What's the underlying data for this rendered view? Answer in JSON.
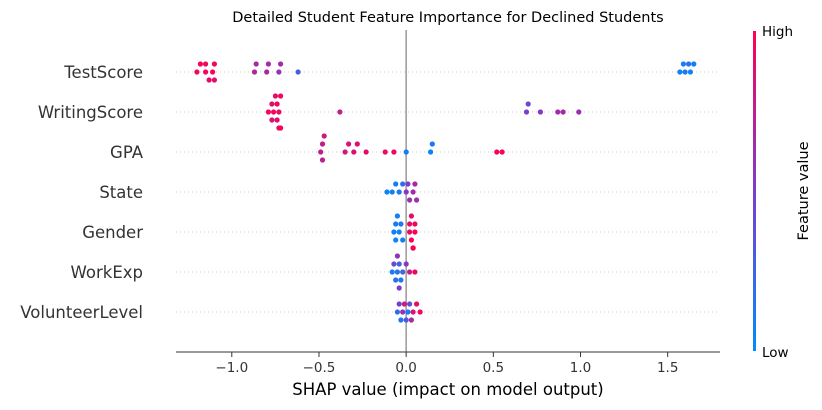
{
  "chart_data": {
    "type": "scatter",
    "title": "Detailed Student Feature Importance for Declined Students",
    "xlabel": "SHAP value (impact on model output)",
    "xlim": [
      -1.32,
      1.8
    ],
    "xticks": [
      "−1.0",
      "−0.5",
      "0.0",
      "0.5",
      "1.0",
      "1.5"
    ],
    "xtick_values": [
      -1.0,
      -0.5,
      0.0,
      0.5,
      1.0,
      1.5
    ],
    "zero_line": true,
    "colorbar": {
      "high_label": "High",
      "low_label": "Low",
      "label": "Feature value"
    },
    "colors": {
      "high": "#ff0052",
      "low": "#008bfb",
      "zero_line": "#999999"
    },
    "features": [
      {
        "name": "TestScore",
        "points": [
          {
            "x": -1.18,
            "v": 0.97
          },
          {
            "x": -1.15,
            "v": 0.95
          },
          {
            "x": -1.13,
            "v": 0.92
          },
          {
            "x": -1.11,
            "v": 0.98
          },
          {
            "x": -1.2,
            "v": 0.94
          },
          {
            "x": -1.1,
            "v": 0.96
          },
          {
            "x": -1.1,
            "v": 0.9
          },
          {
            "x": -1.15,
            "v": 0.93
          },
          {
            "x": -0.87,
            "v": 0.72
          },
          {
            "x": -0.86,
            "v": 0.68
          },
          {
            "x": -0.8,
            "v": 0.7
          },
          {
            "x": -0.79,
            "v": 0.66
          },
          {
            "x": -0.72,
            "v": 0.65
          },
          {
            "x": -0.73,
            "v": 0.6
          },
          {
            "x": -0.62,
            "v": 0.3
          },
          {
            "x": 1.57,
            "v": 0.05
          },
          {
            "x": 1.59,
            "v": 0.1
          },
          {
            "x": 1.62,
            "v": 0.15
          },
          {
            "x": 1.63,
            "v": 0.04
          },
          {
            "x": 1.65,
            "v": 0.08
          },
          {
            "x": 1.6,
            "v": 0.12
          }
        ]
      },
      {
        "name": "WritingScore",
        "points": [
          {
            "x": -0.79,
            "v": 0.93
          },
          {
            "x": -0.77,
            "v": 0.9
          },
          {
            "x": -0.76,
            "v": 0.95
          },
          {
            "x": -0.75,
            "v": 0.91
          },
          {
            "x": -0.74,
            "v": 0.96
          },
          {
            "x": -0.73,
            "v": 0.92
          },
          {
            "x": -0.72,
            "v": 0.94
          },
          {
            "x": -0.72,
            "v": 0.97
          },
          {
            "x": -0.74,
            "v": 0.89
          },
          {
            "x": -0.77,
            "v": 0.88
          },
          {
            "x": -0.73,
            "v": 0.87
          },
          {
            "x": -0.38,
            "v": 0.75
          },
          {
            "x": 0.69,
            "v": 0.5
          },
          {
            "x": 0.7,
            "v": 0.45
          },
          {
            "x": 0.77,
            "v": 0.55
          },
          {
            "x": 0.87,
            "v": 0.65
          },
          {
            "x": 0.9,
            "v": 0.68
          },
          {
            "x": 0.99,
            "v": 0.62
          }
        ]
      },
      {
        "name": "GPA",
        "points": [
          {
            "x": -0.49,
            "v": 0.76
          },
          {
            "x": -0.48,
            "v": 0.78
          },
          {
            "x": -0.47,
            "v": 0.8
          },
          {
            "x": -0.48,
            "v": 0.74
          },
          {
            "x": -0.35,
            "v": 0.82
          },
          {
            "x": -0.33,
            "v": 0.85
          },
          {
            "x": -0.3,
            "v": 0.86
          },
          {
            "x": -0.28,
            "v": 0.88
          },
          {
            "x": -0.23,
            "v": 0.9
          },
          {
            "x": -0.12,
            "v": 0.93
          },
          {
            "x": -0.07,
            "v": 0.95
          },
          {
            "x": 0.0,
            "v": 0.1
          },
          {
            "x": 0.14,
            "v": 0.05
          },
          {
            "x": 0.15,
            "v": 0.12
          },
          {
            "x": 0.52,
            "v": 0.97
          },
          {
            "x": 0.55,
            "v": 0.98
          }
        ]
      },
      {
        "name": "State",
        "points": [
          {
            "x": -0.11,
            "v": 0.05
          },
          {
            "x": -0.08,
            "v": 0.1
          },
          {
            "x": -0.06,
            "v": 0.08
          },
          {
            "x": -0.04,
            "v": 0.12
          },
          {
            "x": -0.02,
            "v": 0.2
          },
          {
            "x": 0.0,
            "v": 0.55
          },
          {
            "x": 0.02,
            "v": 0.6
          },
          {
            "x": 0.04,
            "v": 0.65
          },
          {
            "x": 0.05,
            "v": 0.7
          },
          {
            "x": 0.06,
            "v": 0.62
          },
          {
            "x": 0.01,
            "v": 0.5
          }
        ]
      },
      {
        "name": "Gender",
        "points": [
          {
            "x": -0.07,
            "v": 0.05
          },
          {
            "x": -0.06,
            "v": 0.1
          },
          {
            "x": -0.05,
            "v": 0.08
          },
          {
            "x": -0.04,
            "v": 0.06
          },
          {
            "x": -0.03,
            "v": 0.12
          },
          {
            "x": -0.02,
            "v": 0.07
          },
          {
            "x": -0.06,
            "v": 0.04
          },
          {
            "x": 0.02,
            "v": 0.95
          },
          {
            "x": 0.03,
            "v": 0.97
          },
          {
            "x": 0.04,
            "v": 0.93
          },
          {
            "x": 0.05,
            "v": 0.98
          },
          {
            "x": 0.03,
            "v": 0.9
          },
          {
            "x": 0.04,
            "v": 0.96
          },
          {
            "x": 0.02,
            "v": 0.92
          },
          {
            "x": 0.05,
            "v": 0.94
          },
          {
            "x": 0.04,
            "v": 0.99
          }
        ]
      },
      {
        "name": "WorkExp",
        "points": [
          {
            "x": -0.08,
            "v": 0.1
          },
          {
            "x": -0.06,
            "v": 0.2
          },
          {
            "x": -0.05,
            "v": 0.15
          },
          {
            "x": -0.04,
            "v": 0.3
          },
          {
            "x": -0.03,
            "v": 0.12
          },
          {
            "x": -0.02,
            "v": 0.25
          },
          {
            "x": -0.07,
            "v": 0.4
          },
          {
            "x": -0.04,
            "v": 0.5
          },
          {
            "x": 0.0,
            "v": 0.55
          },
          {
            "x": 0.02,
            "v": 0.8
          },
          {
            "x": 0.05,
            "v": 0.95
          },
          {
            "x": -0.05,
            "v": 0.6
          }
        ]
      },
      {
        "name": "VolunteerLevel",
        "points": [
          {
            "x": -0.05,
            "v": 0.2
          },
          {
            "x": -0.04,
            "v": 0.5
          },
          {
            "x": -0.03,
            "v": 0.15
          },
          {
            "x": -0.02,
            "v": 0.6
          },
          {
            "x": 0.0,
            "v": 0.3
          },
          {
            "x": 0.02,
            "v": 0.4
          },
          {
            "x": 0.03,
            "v": 0.7
          },
          {
            "x": 0.04,
            "v": 0.85
          },
          {
            "x": 0.06,
            "v": 0.9
          },
          {
            "x": 0.08,
            "v": 0.95
          },
          {
            "x": 0.01,
            "v": 0.1
          },
          {
            "x": -0.01,
            "v": 0.8
          }
        ]
      }
    ]
  }
}
